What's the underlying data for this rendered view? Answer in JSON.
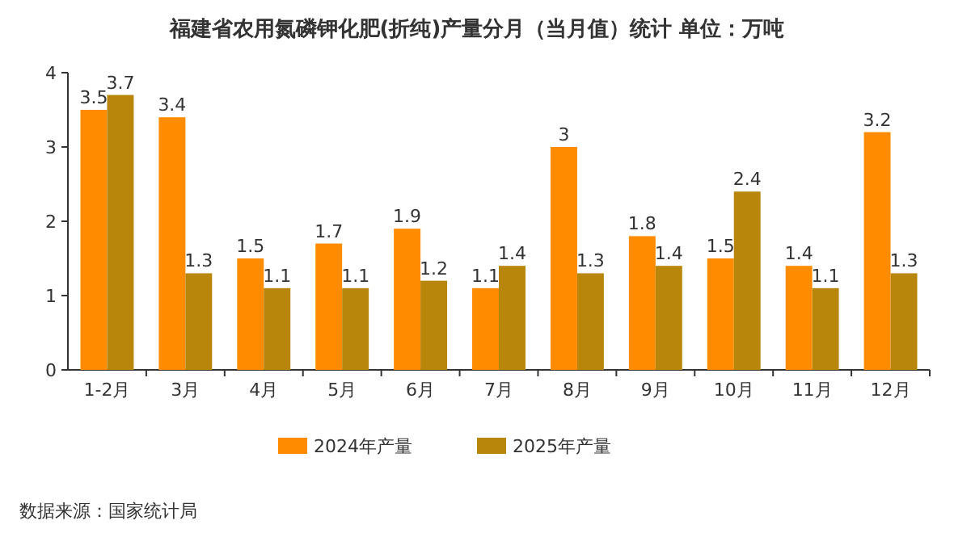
{
  "chart_data": {
    "type": "bar",
    "title": "福建省农用氮磷钾化肥(折纯)产量分月（当月值）统计  单位：万吨",
    "categories": [
      "1-2月",
      "3月",
      "4月",
      "5月",
      "6月",
      "7月",
      "8月",
      "9月",
      "10月",
      "11月",
      "12月"
    ],
    "series": [
      {
        "name": "2024年产量",
        "color": "#ff8c00",
        "values": [
          3.5,
          3.4,
          1.5,
          1.7,
          1.9,
          1.1,
          3,
          1.8,
          1.5,
          1.4,
          3.2
        ]
      },
      {
        "name": "2025年产量",
        "color": "#b8860b",
        "values": [
          3.7,
          1.3,
          1.1,
          1.1,
          1.2,
          1.4,
          1.3,
          1.4,
          2.4,
          1.1,
          1.3
        ]
      }
    ],
    "ylim": [
      0,
      4
    ],
    "yticks": [
      0,
      1,
      2,
      3,
      4
    ],
    "data_labels": true,
    "legend": "bottom",
    "annotations": [
      "数据来源：国家统计局"
    ]
  }
}
